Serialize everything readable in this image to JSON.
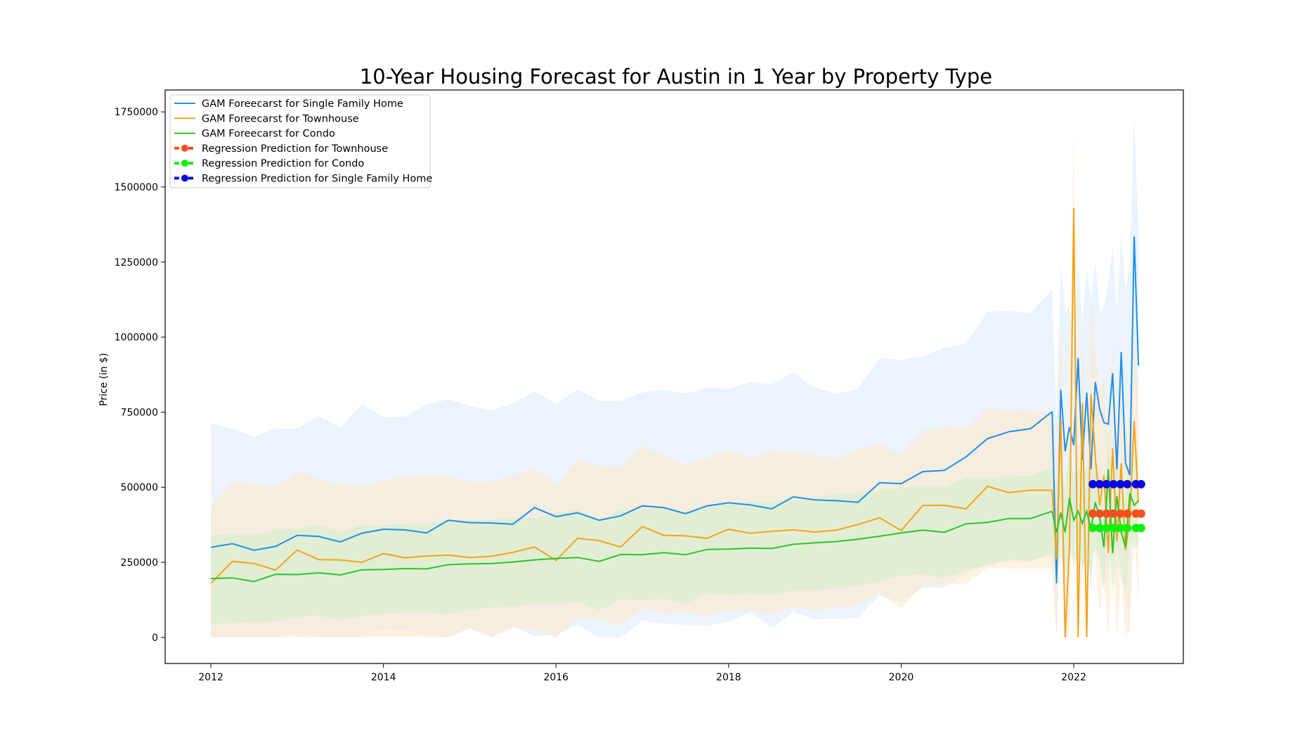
{
  "chart_data": {
    "type": "line",
    "title": "10-Year Housing Forecast for Austin in 1 Year by Property Type",
    "xlabel": "",
    "ylabel": "Price (in $)",
    "xlim": [
      2011.47,
      2023.27
    ],
    "ylim": [
      -87000,
      1823000
    ],
    "x_ticks": [
      2012,
      2014,
      2016,
      2018,
      2020,
      2022
    ],
    "x_tick_labels": [
      "2012",
      "2014",
      "2016",
      "2018",
      "2020",
      "2022"
    ],
    "y_ticks": [
      0,
      250000,
      500000,
      750000,
      1000000,
      1250000,
      1500000,
      1750000
    ],
    "y_tick_labels": [
      "0",
      "250000",
      "500000",
      "750000",
      "1000000",
      "1250000",
      "1500000",
      "1750000"
    ],
    "grid": false,
    "legend_position": "upper-left",
    "colors": {
      "single_family_line": "#1f8fe8",
      "single_family_band": "#dbeafc",
      "townhouse_line": "#f5a31a",
      "townhouse_band": "#fde7c8",
      "condo_line": "#2cc42c",
      "condo_band": "#cfeec8",
      "regression_townhouse": "#f2501c",
      "regression_condo": "#0ff00f",
      "regression_single_family": "#0a0ae0"
    },
    "x": [
      2012.0,
      2012.25,
      2012.5,
      2012.75,
      2013.0,
      2013.25,
      2013.5,
      2013.75,
      2014.0,
      2014.25,
      2014.5,
      2014.75,
      2015.0,
      2015.25,
      2015.5,
      2015.75,
      2016.0,
      2016.25,
      2016.5,
      2016.75,
      2017.0,
      2017.25,
      2017.5,
      2017.75,
      2018.0,
      2018.25,
      2018.5,
      2018.75,
      2019.0,
      2019.25,
      2019.5,
      2019.75,
      2020.0,
      2020.25,
      2020.5,
      2020.75,
      2021.0,
      2021.25,
      2021.5,
      2021.75
    ],
    "series": [
      {
        "name": "GAM Foreecarst for Single Family Home",
        "kind": "gam",
        "color": "#1f8fe8",
        "band_color": "#dbeafc",
        "values": [
          300000,
          312000,
          290000,
          303000,
          340000,
          336000,
          318000,
          347000,
          360000,
          358000,
          348000,
          390000,
          382000,
          381000,
          377000,
          432000,
          402000,
          415000,
          390000,
          405000,
          438000,
          432000,
          412000,
          438000,
          448000,
          441000,
          428000,
          468000,
          458000,
          455000,
          450000,
          515000,
          512000,
          552000,
          556000,
          601000,
          662000,
          685000,
          695000,
          752000
        ],
        "upper": [
          712000,
          695000,
          668000,
          695000,
          695000,
          737000,
          698000,
          776000,
          733000,
          735000,
          775000,
          793000,
          770000,
          755000,
          779000,
          820000,
          778000,
          827000,
          787000,
          787000,
          815000,
          825000,
          812000,
          830000,
          828000,
          851000,
          842000,
          883000,
          832000,
          811000,
          828000,
          931000,
          924000,
          935000,
          966000,
          978000,
          1084000,
          1088000,
          1080000,
          1158000
        ],
        "lower": [
          0,
          0,
          0,
          0,
          15000,
          0,
          0,
          0,
          28000,
          22000,
          8000,
          0,
          32000,
          0,
          38000,
          3000,
          8000,
          42000,
          0,
          0,
          55000,
          45000,
          42000,
          38000,
          52000,
          83000,
          30000,
          85000,
          60000,
          62000,
          66000,
          140000,
          115000,
          165000,
          165000,
          210000,
          250000,
          252000,
          250000,
          290000
        ],
        "forecast_x": [
          2021.75,
          2021.8,
          2021.85,
          2021.9,
          2021.95,
          2022.0,
          2022.05,
          2022.1,
          2022.15,
          2022.2,
          2022.25,
          2022.3,
          2022.35,
          2022.4,
          2022.45,
          2022.5,
          2022.55,
          2022.6,
          2022.65,
          2022.7,
          2022.75
        ],
        "forecast_values": [
          752000,
          180000,
          825000,
          620000,
          700000,
          640000,
          930000,
          590000,
          815000,
          560000,
          850000,
          760000,
          715000,
          710000,
          880000,
          560000,
          950000,
          580000,
          540000,
          1335000,
          905000
        ],
        "forecast_upper": [
          1158000,
          720000,
          1240000,
          1090000,
          1100000,
          980000,
          1250000,
          1040000,
          1230000,
          1120000,
          1250000,
          1080000,
          1100000,
          1180000,
          1300000,
          1090000,
          1350000,
          1150000,
          1250000,
          1740000,
          1350000
        ],
        "forecast_lower": [
          290000,
          0,
          410000,
          180000,
          280000,
          260000,
          520000,
          200000,
          330000,
          140000,
          460000,
          290000,
          180000,
          190000,
          380000,
          150000,
          350000,
          130000,
          80000,
          900000,
          450000
        ]
      },
      {
        "name": "GAM Foreecarst for Townhouse",
        "kind": "gam",
        "color": "#f5a31a",
        "band_color": "#fde7c8",
        "values": [
          180000,
          253000,
          246000,
          224000,
          291000,
          259000,
          258000,
          250000,
          279000,
          265000,
          271000,
          274000,
          266000,
          270000,
          283000,
          301000,
          256000,
          330000,
          322000,
          301000,
          369000,
          340000,
          338000,
          330000,
          360000,
          347000,
          353000,
          358000,
          351000,
          357000,
          376000,
          398000,
          356000,
          439000,
          440000,
          428000,
          503000,
          482000,
          490000,
          490000
        ],
        "upper": [
          433000,
          521000,
          512000,
          503000,
          553000,
          529000,
          511000,
          503000,
          523000,
          536000,
          539000,
          537000,
          520000,
          520000,
          538000,
          561000,
          510000,
          591000,
          571000,
          566000,
          638000,
          606000,
          574000,
          598000,
          624000,
          597000,
          622000,
          618000,
          606000,
          596000,
          629000,
          644000,
          607000,
          688000,
          702000,
          694000,
          764000,
          756000,
          754000,
          750000
        ],
        "lower": [
          0,
          0,
          0,
          0,
          0,
          0,
          0,
          0,
          0,
          0,
          0,
          0,
          30000,
          0,
          30000,
          28000,
          0,
          62000,
          60000,
          40000,
          98000,
          80000,
          84000,
          68000,
          90000,
          90000,
          75000,
          100000,
          90000,
          100000,
          105000,
          150000,
          95000,
          175000,
          178000,
          178000,
          232000,
          230000,
          230000,
          230000
        ],
        "forecast_x": [
          2021.75,
          2021.8,
          2021.85,
          2021.9,
          2021.95,
          2022.0,
          2022.05,
          2022.1,
          2022.15,
          2022.2,
          2022.25,
          2022.3,
          2022.35,
          2022.4,
          2022.45,
          2022.5,
          2022.55,
          2022.6,
          2022.65,
          2022.7,
          2022.75
        ],
        "forecast_values": [
          490000,
          260000,
          720000,
          0,
          300000,
          1430000,
          0,
          780000,
          0,
          810000,
          600000,
          440000,
          540000,
          280000,
          630000,
          320000,
          580000,
          290000,
          400000,
          720000,
          450000
        ],
        "forecast_upper": [
          750000,
          600000,
          1050000,
          380000,
          640000,
          1720000,
          340000,
          1100000,
          320000,
          1150000,
          950000,
          800000,
          870000,
          640000,
          980000,
          680000,
          940000,
          660000,
          780000,
          1050000,
          800000
        ],
        "forecast_lower": [
          230000,
          0,
          380000,
          0,
          0,
          1100000,
          0,
          440000,
          0,
          460000,
          250000,
          80000,
          200000,
          0,
          280000,
          0,
          210000,
          0,
          20000,
          380000,
          100000
        ]
      },
      {
        "name": "GAM Foreecarst for Condo",
        "kind": "gam",
        "color": "#2cc42c",
        "band_color": "#cfeec8",
        "values": [
          196000,
          198000,
          186000,
          210000,
          209000,
          215000,
          208000,
          225000,
          226000,
          229000,
          228000,
          242000,
          245000,
          246000,
          251000,
          258000,
          263000,
          266000,
          253000,
          276000,
          275000,
          282000,
          275000,
          293000,
          294000,
          297000,
          296000,
          310000,
          315000,
          319000,
          327000,
          337000,
          348000,
          357000,
          350000,
          378000,
          383000,
          396000,
          396000,
          420000
        ],
        "upper": [
          340000,
          345000,
          342000,
          360000,
          362000,
          374000,
          350000,
          375000,
          373000,
          378000,
          378000,
          390000,
          392000,
          392000,
          397000,
          398000,
          415000,
          424000,
          385000,
          428000,
          424000,
          435000,
          416000,
          442000,
          444000,
          451000,
          450000,
          458000,
          465000,
          478000,
          482000,
          488000,
          498000,
          505000,
          499000,
          532000,
          527000,
          537000,
          538000,
          565000
        ],
        "lower": [
          42000,
          48000,
          50000,
          54000,
          68000,
          72000,
          58000,
          72000,
          80000,
          82000,
          82000,
          78000,
          92000,
          98000,
          104000,
          112000,
          108000,
          120000,
          90000,
          125000,
          122000,
          128000,
          112000,
          146000,
          140000,
          145000,
          140000,
          156000,
          158000,
          163000,
          172000,
          188000,
          205000,
          210000,
          198000,
          225000,
          238000,
          258000,
          255000,
          275000
        ],
        "forecast_x": [
          2021.75,
          2021.8,
          2021.85,
          2021.9,
          2021.95,
          2022.0,
          2022.05,
          2022.1,
          2022.15,
          2022.2,
          2022.25,
          2022.3,
          2022.35,
          2022.4,
          2022.45,
          2022.5,
          2022.55,
          2022.6,
          2022.65,
          2022.7,
          2022.75
        ],
        "forecast_values": [
          420000,
          350000,
          415000,
          350000,
          465000,
          390000,
          420000,
          380000,
          420000,
          360000,
          450000,
          400000,
          300000,
          560000,
          280000,
          470000,
          350000,
          300000,
          480000,
          440000,
          455000
        ],
        "forecast_upper": [
          565000,
          500000,
          560000,
          500000,
          610000,
          540000,
          570000,
          530000,
          570000,
          510000,
          600000,
          550000,
          450000,
          700000,
          430000,
          620000,
          500000,
          450000,
          630000,
          590000,
          600000
        ],
        "forecast_lower": [
          275000,
          200000,
          270000,
          200000,
          320000,
          240000,
          270000,
          230000,
          270000,
          210000,
          300000,
          250000,
          150000,
          410000,
          130000,
          320000,
          200000,
          150000,
          330000,
          290000,
          310000
        ]
      },
      {
        "name": "Regression Prediction for Townhouse",
        "kind": "regression",
        "color": "#f2501c",
        "x": [
          2022.22,
          2022.3,
          2022.38,
          2022.46,
          2022.54,
          2022.62,
          2022.72,
          2022.78
        ],
        "values": [
          412000,
          412000,
          412000,
          412000,
          412000,
          412000,
          412000,
          412000
        ]
      },
      {
        "name": "Regression Prediction for Condo",
        "kind": "regression",
        "color": "#0ff00f",
        "x": [
          2022.22,
          2022.3,
          2022.38,
          2022.46,
          2022.54,
          2022.62,
          2022.72,
          2022.78
        ],
        "values": [
          364000,
          364000,
          364000,
          364000,
          364000,
          364000,
          364000,
          364000
        ]
      },
      {
        "name": "Regression Prediction for Single Family Home",
        "kind": "regression",
        "color": "#0a0ae0",
        "x": [
          2022.22,
          2022.3,
          2022.38,
          2022.46,
          2022.54,
          2022.62,
          2022.72,
          2022.78
        ],
        "values": [
          510000,
          510000,
          510000,
          510000,
          510000,
          510000,
          510000,
          510000
        ]
      }
    ],
    "legend": [
      {
        "label": "GAM Foreecarst for Single Family Home",
        "color": "#1f8fe8",
        "style": "line"
      },
      {
        "label": "GAM Foreecarst for Townhouse",
        "color": "#f5a31a",
        "style": "line"
      },
      {
        "label": "GAM Foreecarst for Condo",
        "color": "#2cc42c",
        "style": "line"
      },
      {
        "label": "Regression Prediction for Townhouse",
        "color": "#f2501c",
        "style": "dashed-marker"
      },
      {
        "label": "Regression Prediction for Condo",
        "color": "#0ff00f",
        "style": "dashed-marker"
      },
      {
        "label": "Regression Prediction for Single Family Home",
        "color": "#0a0ae0",
        "style": "dashed-marker"
      }
    ]
  }
}
